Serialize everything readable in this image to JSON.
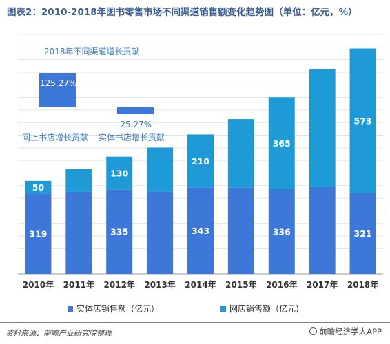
{
  "title": "图表2：2010-2018年图书零售市场不同渠道销售额变化趋势图（单位：亿元，%）",
  "chart_data": {
    "type": "bar",
    "stacked": true,
    "categories": [
      "2010年",
      "2011年",
      "2012年",
      "2013年",
      "2014年",
      "2015年",
      "2016年",
      "2017年",
      "2018年"
    ],
    "series": [
      {
        "name": "实体店销售额（亿元）",
        "color": "#3d78d8",
        "values": [
          319,
          325,
          335,
          326,
          343,
          342,
          336,
          344,
          321
        ]
      },
      {
        "name": "网店销售额（亿元）",
        "color": "#1e9bd7",
        "values": [
          50,
          90,
          130,
          175,
          210,
          272,
          365,
          468,
          573
        ]
      }
    ],
    "data_labels": {
      "0": [
        319,
        null,
        335,
        null,
        343,
        null,
        336,
        null,
        321
      ],
      "1": [
        50,
        null,
        130,
        null,
        210,
        null,
        365,
        null,
        573
      ]
    },
    "ylim": [
      0,
      950
    ],
    "grid": true,
    "legend": "bottom"
  },
  "annotations": {
    "title": "2018年不同渠道增长贡献",
    "online": {
      "value": "125.27%",
      "label": "网上书店增长贡献"
    },
    "physical": {
      "value": "-25.27%",
      "label": "实体书店增长贡献"
    }
  },
  "source": "资料来源：前瞻产业研究院整理",
  "brand": "前瞻经济学人APP"
}
